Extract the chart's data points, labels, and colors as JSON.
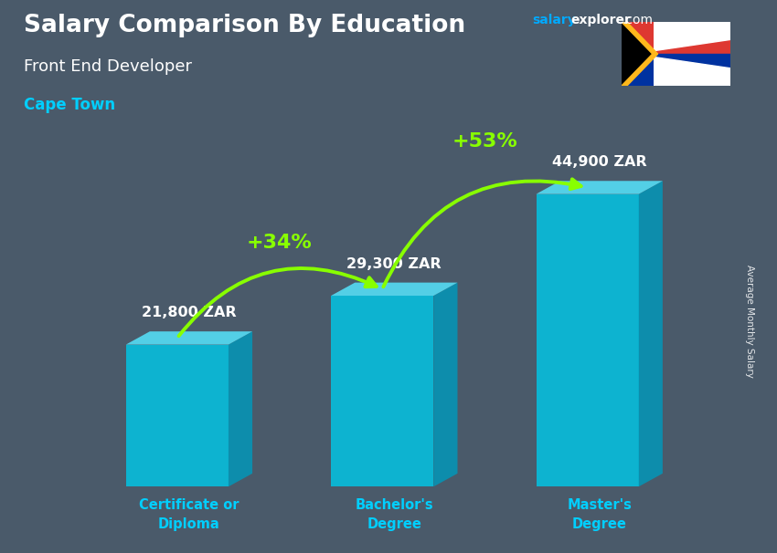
{
  "title": "Salary Comparison By Education",
  "subtitle": "Front End Developer",
  "location": "Cape Town",
  "categories": [
    "Certificate or\nDiploma",
    "Bachelor's\nDegree",
    "Master's\nDegree"
  ],
  "values": [
    21800,
    29300,
    44900
  ],
  "value_labels": [
    "21,800 ZAR",
    "29,300 ZAR",
    "44,900 ZAR"
  ],
  "pct_changes": [
    "+34%",
    "+53%"
  ],
  "bar_front_color": "#00c8e8",
  "bar_top_color": "#55ddf5",
  "bar_side_color": "#0099bb",
  "bg_color": "#4a5a6a",
  "title_color": "#ffffff",
  "subtitle_color": "#ffffff",
  "location_color": "#00cfff",
  "value_color": "#ffffff",
  "label_color": "#00cfff",
  "pct_color": "#88ff00",
  "arrow_color": "#88ff00",
  "ylabel": "Average Monthly Salary",
  "website_salary_color": "#00aaff",
  "website_explorer_color": "#ffffff"
}
